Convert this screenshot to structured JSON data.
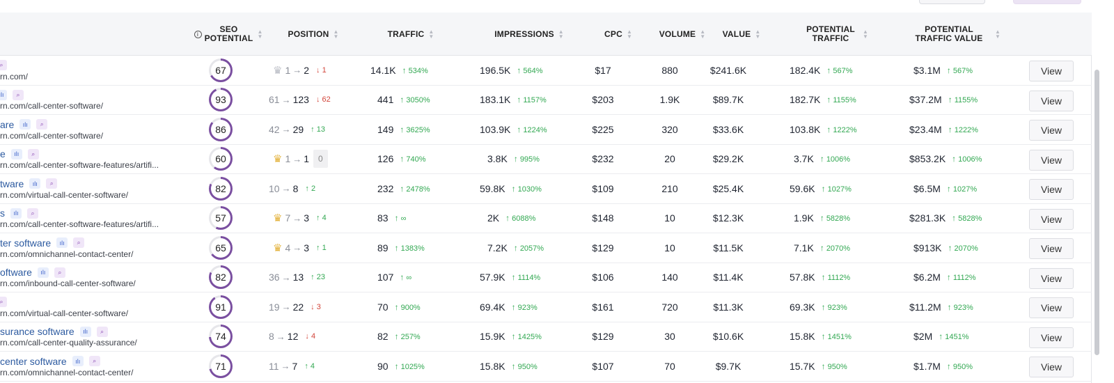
{
  "headers": {
    "seo_potential": "SEO POTENTIAL",
    "position": "POSITION",
    "traffic": "TRAFFIC",
    "impressions": "IMPRESSIONS",
    "cpc": "CPC",
    "volume": "VOLUME",
    "value": "VALUE",
    "potential_traffic": "POTENTIAL TRAFFIC",
    "potential_traffic_value": "POTENTIAL TRAFFIC VALUE"
  },
  "rows": [
    {
      "keyword": "",
      "tags": [
        "mag"
      ],
      "url": "rn.com/",
      "seo": 67,
      "crown": "silver",
      "from": "1",
      "to": "2",
      "chg": "1",
      "chg_dir": "down",
      "traffic": "14.1K",
      "traffic_d": "534%",
      "impr": "196.5K",
      "impr_d": "564%",
      "cpc": "$17",
      "volume": "880",
      "value": "$241.6K",
      "pt": "182.4K",
      "pt_d": "567%",
      "ptv": "$3.1M",
      "ptv_d": "567%",
      "view": "View"
    },
    {
      "keyword": "",
      "tags": [
        "bars",
        "mag"
      ],
      "url": "rn.com/call-center-software/",
      "seo": 93,
      "crown": "",
      "from": "61",
      "to": "123",
      "chg": "62",
      "chg_dir": "down",
      "traffic": "441",
      "traffic_d": "3050%",
      "impr": "183.1K",
      "impr_d": "1157%",
      "cpc": "$203",
      "volume": "1.9K",
      "value": "$89.7K",
      "pt": "182.7K",
      "pt_d": "1155%",
      "ptv": "$37.2M",
      "ptv_d": "1155%",
      "view": "View"
    },
    {
      "keyword": "are",
      "tags": [
        "bars",
        "mag"
      ],
      "url": "rn.com/call-center-software/",
      "seo": 86,
      "crown": "",
      "from": "42",
      "to": "29",
      "chg": "13",
      "chg_dir": "up",
      "traffic": "149",
      "traffic_d": "3625%",
      "impr": "103.9K",
      "impr_d": "1224%",
      "cpc": "$225",
      "volume": "320",
      "value": "$33.6K",
      "pt": "103.8K",
      "pt_d": "1222%",
      "ptv": "$23.4M",
      "ptv_d": "1222%",
      "view": "View"
    },
    {
      "keyword": "e",
      "tags": [
        "bars",
        "mag"
      ],
      "url": "rn.com/call-center-software-features/artifi...",
      "seo": 60,
      "crown": "gold",
      "from": "1",
      "to": "1",
      "chg": "0",
      "chg_dir": "zero",
      "traffic": "126",
      "traffic_d": "740%",
      "impr": "3.8K",
      "impr_d": "995%",
      "cpc": "$232",
      "volume": "20",
      "value": "$29.2K",
      "pt": "3.7K",
      "pt_d": "1006%",
      "ptv": "$853.2K",
      "ptv_d": "1006%",
      "view": "View"
    },
    {
      "keyword": "tware",
      "tags": [
        "bars",
        "mag"
      ],
      "url": "rn.com/virtual-call-center-software/",
      "seo": 82,
      "crown": "",
      "from": "10",
      "to": "8",
      "chg": "2",
      "chg_dir": "up",
      "traffic": "232",
      "traffic_d": "2478%",
      "impr": "59.8K",
      "impr_d": "1030%",
      "cpc": "$109",
      "volume": "210",
      "value": "$25.4K",
      "pt": "59.6K",
      "pt_d": "1027%",
      "ptv": "$6.5M",
      "ptv_d": "1027%",
      "view": "View"
    },
    {
      "keyword": "s",
      "tags": [
        "bars",
        "mag"
      ],
      "url": "rn.com/call-center-software-features/artifi...",
      "seo": 57,
      "crown": "gold",
      "from": "7",
      "to": "3",
      "chg": "4",
      "chg_dir": "up",
      "traffic": "83",
      "traffic_d": "∞",
      "impr": "2K",
      "impr_d": "6088%",
      "cpc": "$148",
      "volume": "10",
      "value": "$12.3K",
      "pt": "1.9K",
      "pt_d": "5828%",
      "ptv": "$281.3K",
      "ptv_d": "5828%",
      "view": "View"
    },
    {
      "keyword": "ter software",
      "tags": [
        "bars",
        "mag"
      ],
      "url": "rn.com/omnichannel-contact-center/",
      "seo": 65,
      "crown": "gold",
      "from": "4",
      "to": "3",
      "chg": "1",
      "chg_dir": "up",
      "traffic": "89",
      "traffic_d": "1383%",
      "impr": "7.2K",
      "impr_d": "2057%",
      "cpc": "$129",
      "volume": "10",
      "value": "$11.5K",
      "pt": "7.1K",
      "pt_d": "2070%",
      "ptv": "$913K",
      "ptv_d": "2070%",
      "view": "View"
    },
    {
      "keyword": "oftware",
      "tags": [
        "bars",
        "mag"
      ],
      "url": "rn.com/inbound-call-center-software/",
      "seo": 82,
      "crown": "",
      "from": "36",
      "to": "13",
      "chg": "23",
      "chg_dir": "up",
      "traffic": "107",
      "traffic_d": "∞",
      "impr": "57.9K",
      "impr_d": "1114%",
      "cpc": "$106",
      "volume": "140",
      "value": "$11.4K",
      "pt": "57.8K",
      "pt_d": "1112%",
      "ptv": "$6.2M",
      "ptv_d": "1112%",
      "view": "View"
    },
    {
      "keyword": "",
      "tags": [
        "mag"
      ],
      "url": "rn.com/virtual-call-center-software/",
      "seo": 91,
      "crown": "",
      "from": "19",
      "to": "22",
      "chg": "3",
      "chg_dir": "down",
      "traffic": "70",
      "traffic_d": "900%",
      "impr": "69.4K",
      "impr_d": "923%",
      "cpc": "$161",
      "volume": "720",
      "value": "$11.3K",
      "pt": "69.3K",
      "pt_d": "923%",
      "ptv": "$11.2M",
      "ptv_d": "923%",
      "view": "View"
    },
    {
      "keyword": "surance software",
      "tags": [
        "bars",
        "mag"
      ],
      "url": "rn.com/call-center-quality-assurance/",
      "seo": 74,
      "crown": "",
      "from": "8",
      "to": "12",
      "chg": "4",
      "chg_dir": "down",
      "traffic": "82",
      "traffic_d": "257%",
      "impr": "15.9K",
      "impr_d": "1425%",
      "cpc": "$129",
      "volume": "30",
      "value": "$10.6K",
      "pt": "15.8K",
      "pt_d": "1451%",
      "ptv": "$2M",
      "ptv_d": "1451%",
      "view": "View"
    },
    {
      "keyword": "center software",
      "tags": [
        "bars",
        "mag"
      ],
      "url": "rn.com/omnichannel-contact-center/",
      "seo": 71,
      "crown": "",
      "from": "11",
      "to": "7",
      "chg": "4",
      "chg_dir": "up",
      "traffic": "90",
      "traffic_d": "1025%",
      "impr": "15.8K",
      "impr_d": "950%",
      "cpc": "$107",
      "volume": "70",
      "value": "$9.7K",
      "pt": "15.7K",
      "pt_d": "950%",
      "ptv": "$1.7M",
      "ptv_d": "950%",
      "view": "View"
    }
  ],
  "colors": {
    "ring": "#7a4fa0",
    "ring_track": "#e6e6ea",
    "link": "#2c5aa0",
    "up": "#32a852",
    "down": "#d2453a"
  }
}
